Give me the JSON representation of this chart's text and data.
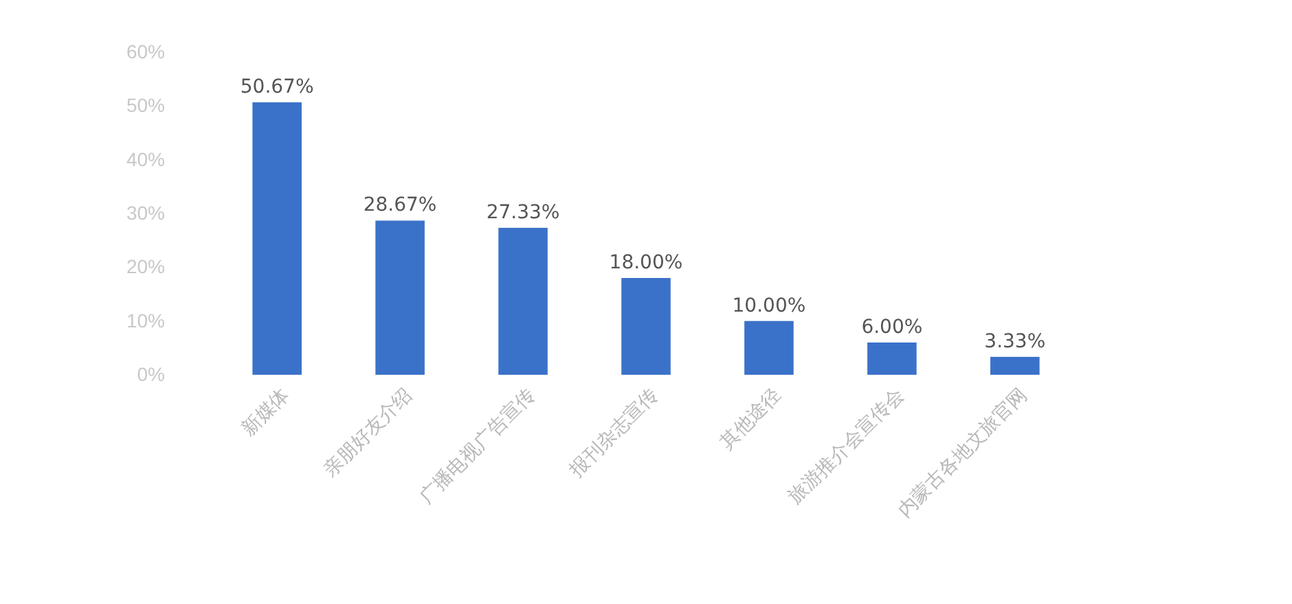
{
  "chart_data": {
    "type": "bar",
    "categories": [
      "新媒体",
      "亲朋好友介绍",
      "广播电视广告宣传",
      "报刊杂志宣传",
      "其他途径",
      "旅游推介会宣传会",
      "内蒙古各地文旅官网"
    ],
    "values": [
      50.67,
      28.67,
      27.33,
      18.0,
      10.0,
      6.0,
      3.33
    ],
    "value_labels": [
      "50.67%",
      "28.67%",
      "27.33%",
      "18.00%",
      "10.00%",
      "6.00%",
      "3.33%"
    ],
    "color": "#3b72c9",
    "ylim": [
      0,
      60
    ],
    "yticks": [
      {
        "value": 0,
        "label": "0%"
      },
      {
        "value": 10,
        "label": "10%"
      },
      {
        "value": 20,
        "label": "20%"
      },
      {
        "value": 30,
        "label": "30%"
      },
      {
        "value": 40,
        "label": "40%"
      },
      {
        "value": 50,
        "label": "50%"
      },
      {
        "value": 60,
        "label": "60%"
      }
    ]
  }
}
